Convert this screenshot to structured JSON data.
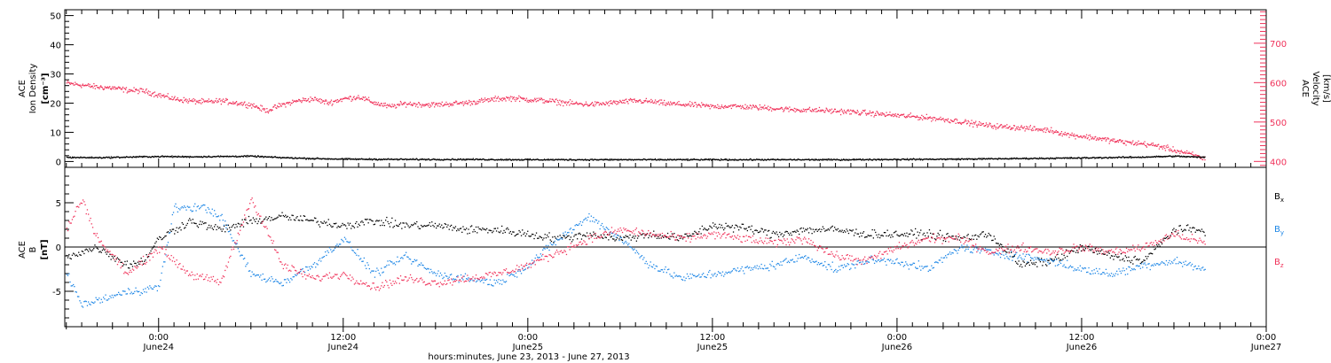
{
  "colors": {
    "black": "#000000",
    "pink": "#f0325a",
    "blue": "#1e87e6",
    "bg": "#ffffff"
  },
  "footer": {
    "xlabel": "hours:minutes, June 23, 2013 - June 27, 2013",
    "ticks": [
      {
        "h": 24,
        "time": "0:00",
        "date": "June24"
      },
      {
        "h": 36,
        "time": "12:00",
        "date": "June24"
      },
      {
        "h": 48,
        "time": "0:00",
        "date": "June25"
      },
      {
        "h": 60,
        "time": "12:00",
        "date": "June25"
      },
      {
        "h": 72,
        "time": "0:00",
        "date": "June26"
      },
      {
        "h": 84,
        "time": "12:00",
        "date": "June26"
      },
      {
        "h": 96,
        "time": "0:00",
        "date": "June27"
      }
    ]
  },
  "chart_data": [
    {
      "type": "scatter",
      "panel": "top",
      "xlabel": "hours:minutes, June 23, 2013 - June 27, 2013",
      "xlim_hours": [
        17.9,
        96
      ],
      "left_axis": {
        "label_lines": [
          "ACE",
          "Ion Density",
          "[cm⁻³]"
        ],
        "ylim": [
          -2,
          52
        ],
        "ticks": [
          0,
          10,
          20,
          30,
          40,
          50
        ]
      },
      "right_axis": {
        "label_lines": [
          "ACE",
          "Velocity",
          "[km/s]"
        ],
        "ylim": [
          385,
          785
        ],
        "ticks": [
          400,
          500,
          600,
          700
        ]
      },
      "series": [
        {
          "axis": "right",
          "color": "#f0325a",
          "points": [
            [
              18,
              600
            ],
            [
              19,
              595
            ],
            [
              20,
              590
            ],
            [
              21,
              588
            ],
            [
              22,
              582
            ],
            [
              23,
              580
            ],
            [
              24,
              570
            ],
            [
              25,
              560
            ],
            [
              26,
              555
            ],
            [
              27,
              552
            ],
            [
              28,
              555
            ],
            [
              29,
              550
            ],
            [
              30,
              545
            ],
            [
              31,
              530
            ],
            [
              32,
              545
            ],
            [
              33,
              555
            ],
            [
              34,
              560
            ],
            [
              35,
              550
            ],
            [
              36,
              560
            ],
            [
              37,
              565
            ],
            [
              38,
              550
            ],
            [
              39,
              540
            ],
            [
              40,
              548
            ],
            [
              41,
              546
            ],
            [
              42,
              545
            ],
            [
              43,
              548
            ],
            [
              44,
              550
            ],
            [
              45,
              555
            ],
            [
              46,
              560
            ],
            [
              47,
              562
            ],
            [
              48,
              558
            ],
            [
              49,
              556
            ],
            [
              50,
              552
            ],
            [
              51,
              548
            ],
            [
              52,
              546
            ],
            [
              53,
              548
            ],
            [
              54,
              552
            ],
            [
              55,
              555
            ],
            [
              56,
              553
            ],
            [
              57,
              548
            ],
            [
              58,
              546
            ],
            [
              59,
              544
            ],
            [
              60,
              540
            ],
            [
              61,
              542
            ],
            [
              62,
              540
            ],
            [
              63,
              538
            ],
            [
              64,
              536
            ],
            [
              65,
              533
            ],
            [
              66,
              532
            ],
            [
              67,
              531
            ],
            [
              68,
              529
            ],
            [
              69,
              527
            ],
            [
              70,
              524
            ],
            [
              71,
              521
            ],
            [
              72,
              518
            ],
            [
              73,
              515
            ],
            [
              74,
              512
            ],
            [
              75,
              508
            ],
            [
              76,
              503
            ],
            [
              77,
              497
            ],
            [
              78,
              492
            ],
            [
              79,
              489
            ],
            [
              80,
              487
            ],
            [
              81,
              483
            ],
            [
              82,
              480
            ],
            [
              83,
              470
            ],
            [
              84,
              465
            ],
            [
              85,
              460
            ],
            [
              86,
              454
            ],
            [
              87,
              449
            ],
            [
              88,
              446
            ],
            [
              89,
              440
            ],
            [
              90,
              430
            ],
            [
              91,
              420
            ],
            [
              92,
              408
            ]
          ]
        },
        {
          "axis": "left",
          "color": "#000000",
          "points": [
            [
              18,
              1.6
            ],
            [
              20,
              1.5
            ],
            [
              22,
              1.7
            ],
            [
              24,
              1.9
            ],
            [
              26,
              1.8
            ],
            [
              28,
              1.9
            ],
            [
              30,
              2.0
            ],
            [
              32,
              1.5
            ],
            [
              34,
              1.2
            ],
            [
              36,
              1.0
            ],
            [
              40,
              0.9
            ],
            [
              44,
              0.9
            ],
            [
              48,
              0.8
            ],
            [
              52,
              0.8
            ],
            [
              56,
              0.8
            ],
            [
              60,
              0.8
            ],
            [
              64,
              0.8
            ],
            [
              68,
              0.8
            ],
            [
              72,
              0.9
            ],
            [
              76,
              1.0
            ],
            [
              80,
              1.2
            ],
            [
              84,
              1.4
            ],
            [
              88,
              1.7
            ],
            [
              90,
              2.0
            ],
            [
              92,
              1.6
            ]
          ]
        }
      ]
    },
    {
      "type": "scatter",
      "panel": "bottom",
      "xlim_hours": [
        17.9,
        96
      ],
      "ylabel_lines": [
        "ACE",
        "B",
        "[nT]"
      ],
      "ylim": [
        -9,
        9
      ],
      "yticks": [
        -5,
        0,
        5
      ],
      "legend": [
        "Bx",
        "By",
        "Bz"
      ],
      "legend_colors": [
        "#000000",
        "#1e87e6",
        "#f0325a"
      ],
      "series": [
        {
          "name": "Bx",
          "color": "#000000",
          "points": [
            [
              18,
              -1.0
            ],
            [
              20,
              0.0
            ],
            [
              22,
              -2.0
            ],
            [
              23,
              -1.5
            ],
            [
              24,
              1.0
            ],
            [
              26,
              3.0
            ],
            [
              28,
              2.0
            ],
            [
              30,
              3.0
            ],
            [
              32,
              3.5
            ],
            [
              34,
              3.0
            ],
            [
              36,
              2.5
            ],
            [
              38,
              3.0
            ],
            [
              40,
              2.5
            ],
            [
              42,
              2.5
            ],
            [
              44,
              2.0
            ],
            [
              46,
              2.0
            ],
            [
              48,
              1.5
            ],
            [
              50,
              1.0
            ],
            [
              52,
              1.5
            ],
            [
              54,
              1.0
            ],
            [
              56,
              1.5
            ],
            [
              58,
              1.0
            ],
            [
              60,
              2.5
            ],
            [
              62,
              2.2
            ],
            [
              64,
              1.5
            ],
            [
              66,
              2.0
            ],
            [
              68,
              2.0
            ],
            [
              70,
              1.5
            ],
            [
              72,
              1.5
            ],
            [
              74,
              1.5
            ],
            [
              76,
              1.0
            ],
            [
              78,
              1.5
            ],
            [
              80,
              -2.0
            ],
            [
              82,
              -1.5
            ],
            [
              84,
              0.0
            ],
            [
              86,
              -1.0
            ],
            [
              88,
              -1.5
            ],
            [
              90,
              2.0
            ],
            [
              92,
              2.0
            ]
          ]
        },
        {
          "name": "By",
          "color": "#1e87e6",
          "points": [
            [
              18,
              -3.0
            ],
            [
              19,
              -6.5
            ],
            [
              20,
              -6.0
            ],
            [
              22,
              -5.0
            ],
            [
              24,
              -4.5
            ],
            [
              25,
              4.5
            ],
            [
              27,
              4.5
            ],
            [
              28,
              3.5
            ],
            [
              30,
              -3.0
            ],
            [
              32,
              -4.0
            ],
            [
              34,
              -2.0
            ],
            [
              36,
              1.0
            ],
            [
              38,
              -3.0
            ],
            [
              40,
              -1.0
            ],
            [
              42,
              -3.0
            ],
            [
              44,
              -3.5
            ],
            [
              46,
              -4.0
            ],
            [
              48,
              -2.0
            ],
            [
              50,
              1.0
            ],
            [
              52,
              3.5
            ],
            [
              54,
              1.0
            ],
            [
              56,
              -2.0
            ],
            [
              58,
              -3.5
            ],
            [
              60,
              -3.0
            ],
            [
              62,
              -2.5
            ],
            [
              64,
              -2.0
            ],
            [
              66,
              -1.0
            ],
            [
              68,
              -2.5
            ],
            [
              70,
              -1.5
            ],
            [
              72,
              -1.5
            ],
            [
              74,
              -2.5
            ],
            [
              76,
              0.0
            ],
            [
              78,
              -0.5
            ],
            [
              80,
              -1.0
            ],
            [
              82,
              -1.5
            ],
            [
              84,
              -2.5
            ],
            [
              86,
              -3.0
            ],
            [
              88,
              -2.0
            ],
            [
              90,
              -1.5
            ],
            [
              92,
              -2.5
            ]
          ]
        },
        {
          "name": "Bz",
          "color": "#f0325a",
          "points": [
            [
              18,
              2.0
            ],
            [
              19,
              5.5
            ],
            [
              20,
              1.0
            ],
            [
              22,
              -3.0
            ],
            [
              24,
              0.0
            ],
            [
              26,
              -3.0
            ],
            [
              28,
              -4.0
            ],
            [
              30,
              5.5
            ],
            [
              31,
              2.0
            ],
            [
              32,
              -2.0
            ],
            [
              34,
              -3.5
            ],
            [
              36,
              -3.0
            ],
            [
              38,
              -4.5
            ],
            [
              40,
              -3.5
            ],
            [
              42,
              -4.0
            ],
            [
              44,
              -3.5
            ],
            [
              46,
              -3.0
            ],
            [
              48,
              -2.0
            ],
            [
              50,
              -0.5
            ],
            [
              52,
              1.0
            ],
            [
              54,
              2.0
            ],
            [
              56,
              1.5
            ],
            [
              58,
              1.0
            ],
            [
              60,
              1.5
            ],
            [
              62,
              1.0
            ],
            [
              64,
              0.5
            ],
            [
              66,
              1.0
            ],
            [
              68,
              -1.0
            ],
            [
              70,
              -1.5
            ],
            [
              72,
              0.0
            ],
            [
              74,
              1.0
            ],
            [
              76,
              1.0
            ],
            [
              78,
              -0.5
            ],
            [
              80,
              0.0
            ],
            [
              82,
              -0.5
            ],
            [
              84,
              0.0
            ],
            [
              86,
              -0.5
            ],
            [
              88,
              0.0
            ],
            [
              90,
              1.5
            ],
            [
              92,
              0.5
            ]
          ]
        }
      ]
    }
  ]
}
